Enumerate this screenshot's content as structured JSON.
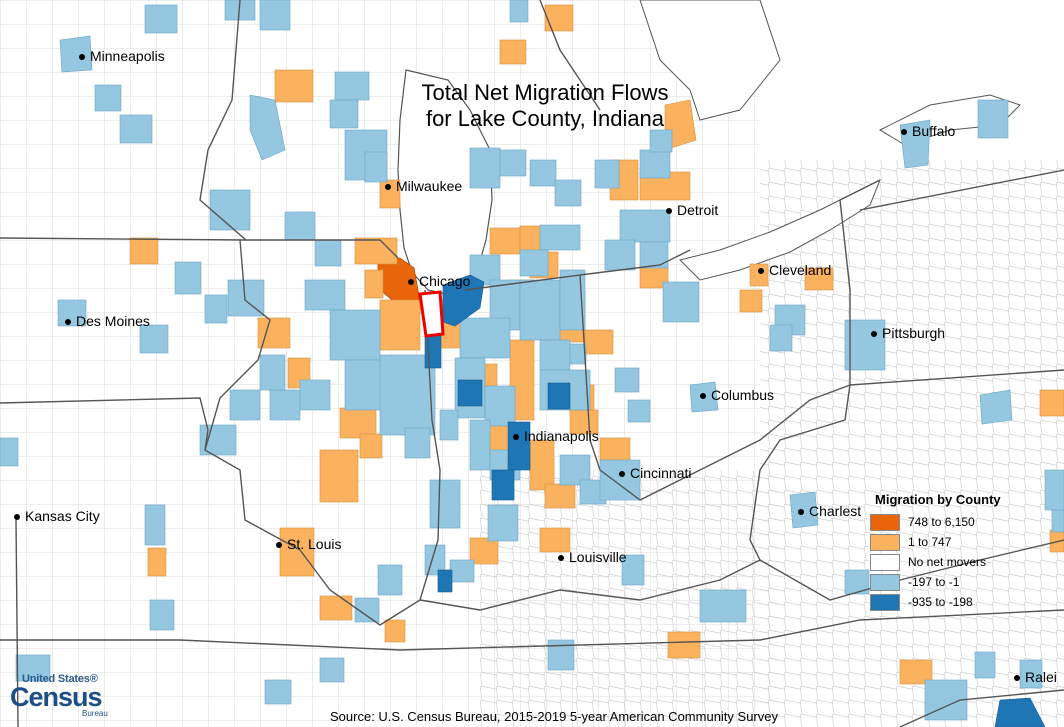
{
  "title_line1": "Total Net Migration Flows",
  "title_line2": "for Lake County, Indiana",
  "colors": {
    "water": "#ffffff",
    "land_empty": "#ffffff",
    "state_border": "#555555",
    "county_border": "#d0d0d0",
    "focus_outline": "#ee0000",
    "high_in": "#e8650a",
    "low_in": "#fbb25f",
    "none": "#ffffff",
    "low_out": "#95c7e0",
    "high_out": "#1f76b4"
  },
  "cities": [
    {
      "name": "Minneapolis"
    },
    {
      "name": "Milwaukee"
    },
    {
      "name": "Chicago"
    },
    {
      "name": "Des Moines"
    },
    {
      "name": "Detroit"
    },
    {
      "name": "Buffalo"
    },
    {
      "name": "Cleveland"
    },
    {
      "name": "Pittsburgh"
    },
    {
      "name": "Columbus"
    },
    {
      "name": "Indianapolis"
    },
    {
      "name": "Cincinnati"
    },
    {
      "name": "Kansas City"
    },
    {
      "name": "St. Louis"
    },
    {
      "name": "Louisville"
    },
    {
      "name": "Charlest"
    },
    {
      "name": "Ralei"
    }
  ],
  "legend": {
    "title": "Migration by County",
    "items": [
      {
        "label": "748 to 6,150",
        "color": "#e8650a"
      },
      {
        "label": "1 to 747",
        "color": "#fbb25f"
      },
      {
        "label": "No net movers",
        "color": "#ffffff"
      },
      {
        "label": "-197 to -1",
        "color": "#95c7e0"
      },
      {
        "label": "-935 to -198",
        "color": "#1f76b4"
      }
    ]
  },
  "source": "Source: U.S. Census Bureau, 2015-2019 5-year American Community Survey",
  "logo": {
    "line1": "United States®",
    "line2": "Census",
    "line3": "Bureau"
  }
}
